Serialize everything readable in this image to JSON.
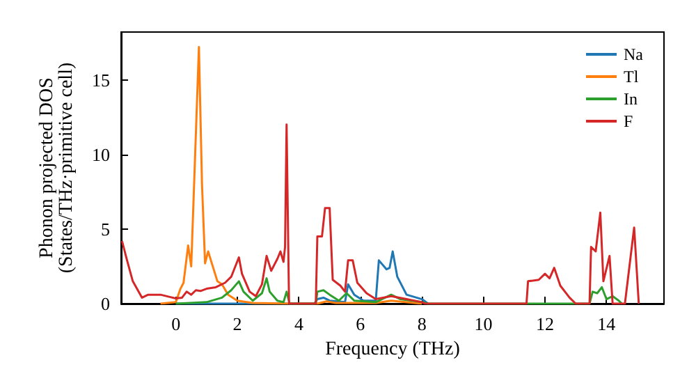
{
  "chart_data": {
    "type": "line",
    "xlabel": "Frequency (THz)",
    "ylabel": "Phonon projected DOS\n(States/THz·primitive cell)",
    "xlim": [
      -1.78,
      15.87
    ],
    "xticks": [
      0,
      2,
      4,
      6,
      8,
      10,
      12,
      14
    ],
    "ylim": [
      0,
      18.2
    ],
    "yticks": [
      0,
      5,
      10,
      15
    ],
    "grid": false,
    "legend": "top right",
    "marker": "none",
    "line_style": "solid",
    "series": [
      {
        "name": "Na",
        "color": "#1f77b4",
        "x": [
          0,
          4.5,
          4.6,
          4.8,
          5.0,
          5.5,
          5.6,
          5.8,
          6.1,
          6.5,
          6.6,
          6.85,
          6.95,
          7.05,
          7.2,
          7.5,
          8.0,
          8.2
        ],
        "values": [
          0,
          0,
          0.3,
          0.4,
          0.2,
          0.1,
          1.3,
          0.6,
          0.2,
          0.2,
          2.9,
          2.3,
          2.4,
          3.5,
          1.8,
          0.6,
          0.3,
          0
        ]
      },
      {
        "name": "Tl",
        "color": "#ff7f0e",
        "x": [
          -0.5,
          0,
          0.15,
          0.25,
          0.4,
          0.5,
          0.75,
          0.85,
          0.95,
          1.05,
          1.2,
          1.35,
          1.5,
          1.7,
          2.0,
          2.5,
          3.7,
          4.6,
          4.9,
          5.2,
          6.5,
          7.0,
          8.0
        ],
        "values": [
          0,
          0.1,
          1.0,
          1.4,
          3.9,
          2.5,
          17.2,
          8.0,
          2.7,
          3.5,
          2.5,
          1.5,
          1.3,
          0.6,
          0.2,
          0.05,
          0,
          0,
          0.15,
          0.05,
          0.05,
          0.2,
          0
        ]
      },
      {
        "name": "In",
        "color": "#2ca02c",
        "x": [
          0,
          1,
          1.5,
          1.8,
          2.05,
          2.2,
          2.5,
          2.8,
          2.95,
          3.05,
          3.3,
          3.5,
          3.6,
          3.7,
          4.55,
          4.6,
          4.8,
          5.0,
          5.3,
          5.55,
          5.8,
          6.5,
          7.0,
          7.3,
          8.0,
          8.2,
          13.45,
          13.55,
          13.7,
          13.85,
          14.0,
          14.2,
          14.4,
          14.5
        ],
        "values": [
          0,
          0.1,
          0.4,
          0.9,
          1.5,
          0.8,
          0.2,
          0.7,
          1.7,
          0.8,
          0.2,
          0.1,
          0.8,
          0,
          0,
          0.8,
          0.9,
          0.6,
          0.2,
          0.7,
          0.2,
          0.1,
          0.6,
          0.3,
          0.1,
          0,
          0,
          0.8,
          0.7,
          1.1,
          0.3,
          0.5,
          0.2,
          0
        ]
      },
      {
        "name": "F",
        "color": "#d62728",
        "x": [
          -1.75,
          -1.6,
          -1.4,
          -1.1,
          -0.9,
          -0.5,
          -0.2,
          0,
          0.2,
          0.35,
          0.5,
          0.65,
          0.8,
          1.0,
          1.3,
          1.6,
          1.8,
          2.05,
          2.15,
          2.4,
          2.6,
          2.8,
          2.95,
          3.1,
          3.3,
          3.4,
          3.5,
          3.55,
          3.6,
          3.68,
          4.55,
          4.6,
          4.75,
          4.85,
          5.0,
          5.1,
          5.35,
          5.5,
          5.6,
          5.75,
          5.9,
          6.2,
          6.5,
          7.0,
          7.5,
          8.0,
          8.1,
          11.4,
          11.45,
          11.8,
          12.0,
          12.15,
          12.3,
          12.5,
          12.8,
          13.0,
          13.45,
          13.5,
          13.65,
          13.8,
          13.9,
          14.1,
          14.2,
          14.6,
          14.9,
          15.05
        ],
        "values": [
          4.2,
          3.0,
          1.5,
          0.4,
          0.6,
          0.6,
          0.45,
          0.35,
          0.4,
          0.8,
          0.6,
          0.9,
          0.85,
          1.0,
          1.1,
          1.4,
          1.8,
          3.1,
          2.0,
          0.8,
          0.5,
          1.3,
          3.2,
          2.2,
          3.0,
          3.5,
          2.8,
          3.8,
          12.0,
          0,
          0,
          4.5,
          4.5,
          6.4,
          6.4,
          1.6,
          1.2,
          0.8,
          2.9,
          2.9,
          1.4,
          0.7,
          0.3,
          0.5,
          0.3,
          0.1,
          0,
          0,
          1.5,
          1.6,
          2.0,
          1.7,
          2.4,
          1.2,
          0.4,
          0,
          0,
          3.8,
          3.5,
          6.1,
          1.5,
          3.2,
          0,
          0,
          5.1,
          0
        ]
      }
    ]
  }
}
